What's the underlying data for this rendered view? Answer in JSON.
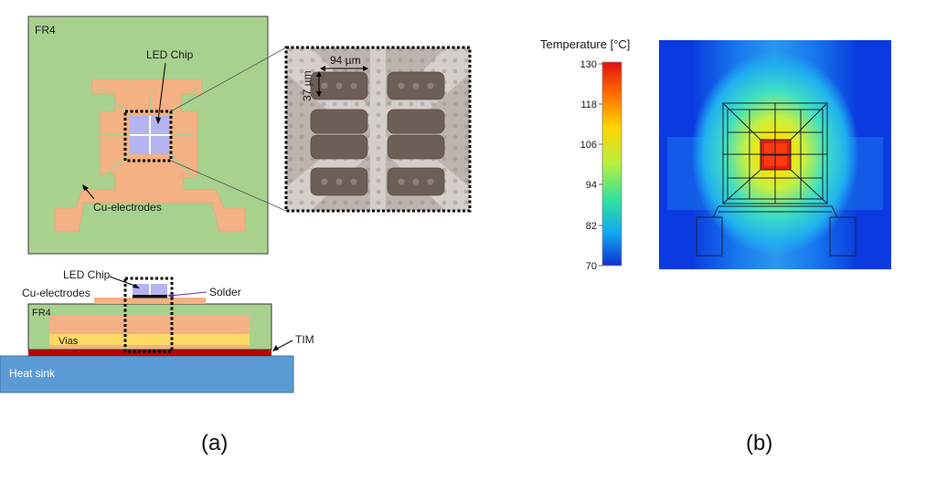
{
  "panel_a": {
    "top_view": {
      "substrate_label": "FR4",
      "chip_label": "LED Chip",
      "electrode_label": "Cu-electrodes"
    },
    "zoom": {
      "width_label": "94 µm",
      "height_label": "37 µm"
    },
    "cross_section": {
      "chip_label": "LED Chip",
      "electrode_label": "Cu-electrodes",
      "solder_label": "Solder",
      "substrate_label": "FR4",
      "vias_label": "Vias",
      "tim_label": "TIM",
      "heatsink_label": "Heat sink"
    },
    "caption": "(a)"
  },
  "panel_b": {
    "colorbar": {
      "title": "Temperature [°C]",
      "ticks": [
        "130",
        "118",
        "106",
        "94",
        "82",
        "70"
      ]
    },
    "caption": "(b)"
  },
  "colors": {
    "fr4": "#a9d18e",
    "copper": "#f4b183",
    "chip": "#b4b4f0",
    "vias": "#ffd966",
    "tim": "#c00000",
    "heatsink": "#5b9bd5"
  }
}
